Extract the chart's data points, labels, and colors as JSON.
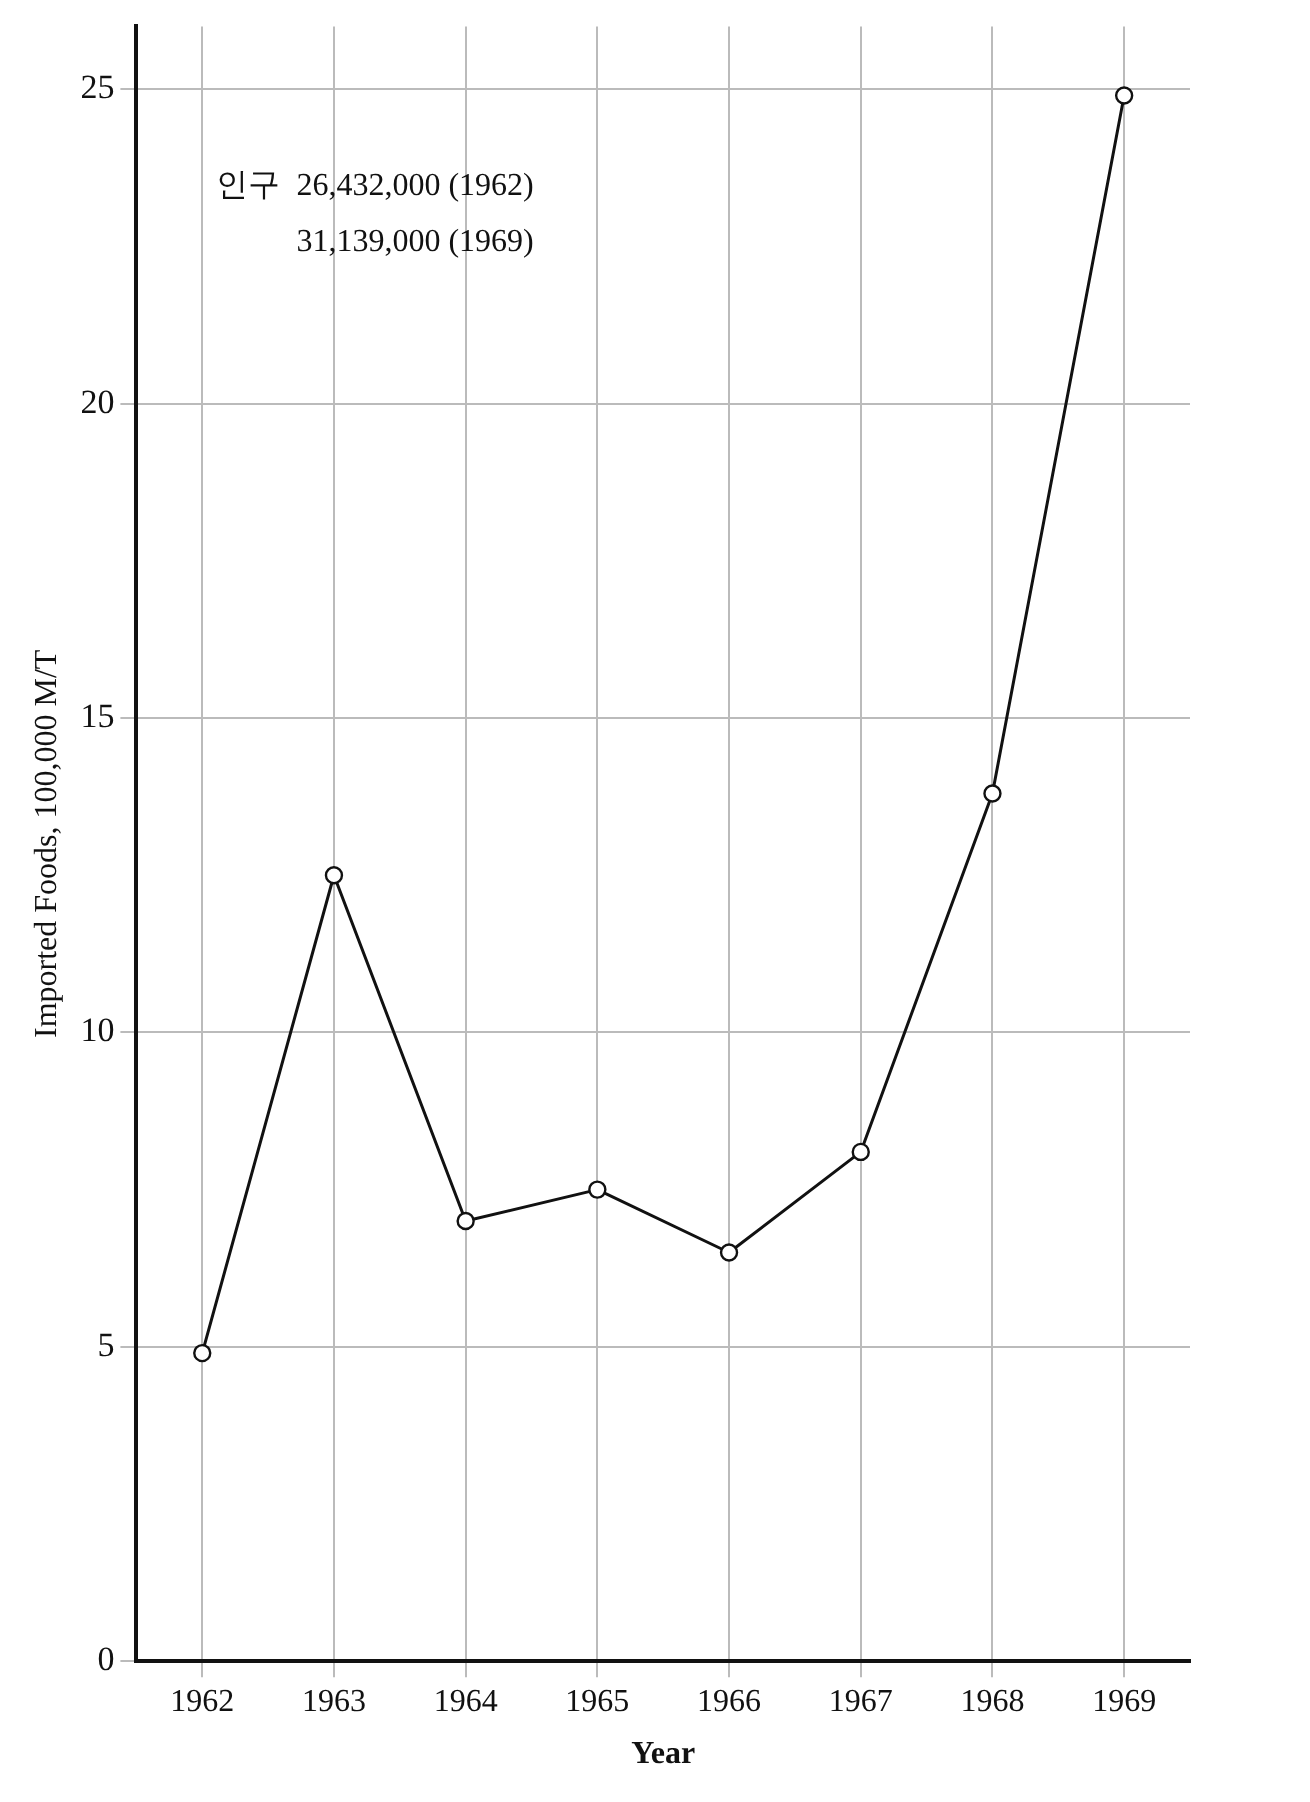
{
  "chart_data": {
    "type": "line",
    "xlabel": "Year",
    "ylabel": "Imported Foods, 100,000 M/T",
    "categories": [
      "1962",
      "1963",
      "1964",
      "1965",
      "1966",
      "1967",
      "1968",
      "1969"
    ],
    "series": [
      {
        "color": "#111111",
        "values": [
          4.9,
          12.5,
          7.0,
          7.5,
          6.5,
          8.1,
          13.8,
          24.9
        ]
      }
    ],
    "ylim": [
      0,
      26
    ],
    "yticks": [
      0,
      5,
      10,
      15,
      20,
      25
    ],
    "grid": true,
    "legend": false,
    "marker": "circle",
    "line_style": "solid",
    "annotations": [
      "인구  26,432,000 (1962)",
      "31,139,000 (1969)"
    ]
  }
}
